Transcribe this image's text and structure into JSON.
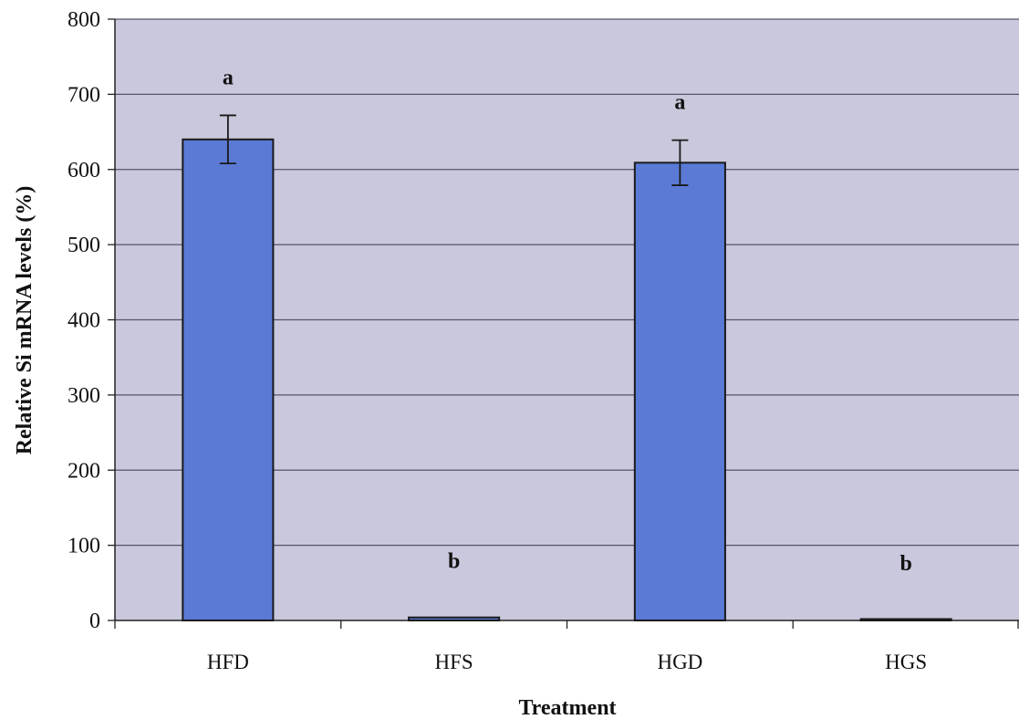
{
  "chart_data": {
    "type": "bar",
    "title": "",
    "xlabel": "Treatment",
    "ylabel": "Relative Si mRNA levels (%)",
    "categories": [
      "HFD",
      "HFS",
      "HGD",
      "HGS"
    ],
    "values": [
      640,
      4,
      609,
      1
    ],
    "error": [
      32,
      0,
      30,
      0
    ],
    "significance": [
      "a",
      "b",
      "a",
      "b"
    ],
    "ylim": [
      0,
      800
    ],
    "yticks": [
      "0",
      "100",
      "200",
      "300",
      "400",
      "500",
      "600",
      "700",
      "800"
    ],
    "grid": true,
    "legend": "none",
    "colors": {
      "plot_background": "#c9c8dc",
      "bar_fill": "#5a7ad6",
      "bar_stroke": "#1a1a1a",
      "gridline": "#555566"
    }
  }
}
